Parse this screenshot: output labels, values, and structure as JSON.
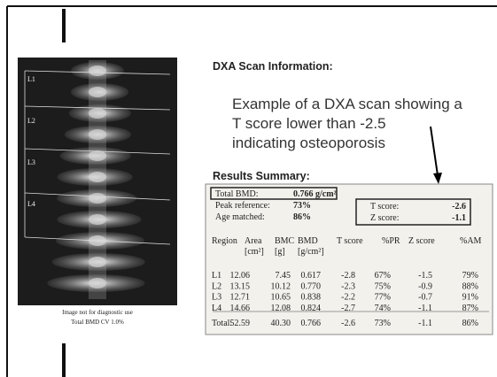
{
  "scan": {
    "labels": [
      "L1",
      "L2",
      "L3",
      "L4"
    ],
    "caption": [
      "Image not for diagnostic use",
      "Total BMD CV 1.0%"
    ]
  },
  "heading": "DXA Scan Information:",
  "annotation": [
    "Example of a DXA scan showing a",
    "T score lower than -2.5",
    "indicating osteoporosis"
  ],
  "results_title": "Results Summary:",
  "summary": {
    "total_bmd": {
      "label": "Total BMD:",
      "value": "0.766 g/cm²"
    },
    "peak_reference": {
      "label": "Peak reference:",
      "value": "73%"
    },
    "age_matched": {
      "label": "Age matched:",
      "value": "86%"
    },
    "t_score": {
      "label": "T score:",
      "value": "-2.6"
    },
    "z_score": {
      "label": "Z score:",
      "value": "-1.1"
    }
  },
  "table": {
    "header": [
      [
        "Region"
      ],
      [
        "Area",
        "[cm²]"
      ],
      [
        "BMC",
        "[g]"
      ],
      [
        "BMD",
        "[g/cm²]"
      ],
      [
        "T score"
      ],
      [
        "%PR"
      ],
      [
        "Z score"
      ],
      [
        "%AM"
      ]
    ],
    "rows": [
      [
        "L1",
        "12.06",
        "7.45",
        "0.617",
        "-2.8",
        "67%",
        "-1.5",
        "79%"
      ],
      [
        "L2",
        "13.15",
        "10.12",
        "0.770",
        "-2.3",
        "75%",
        "-0.9",
        "88%"
      ],
      [
        "L3",
        "12.71",
        "10.65",
        "0.838",
        "-2.2",
        "77%",
        "-0.7",
        "91%"
      ],
      [
        "L4",
        "14.66",
        "12.08",
        "0.824",
        "-2.7",
        "74%",
        "-1.1",
        "87%"
      ]
    ],
    "total": [
      "Total:",
      "52.59",
      "40.30",
      "0.766",
      "-2.6",
      "73%",
      "-1.1",
      "86%"
    ]
  }
}
